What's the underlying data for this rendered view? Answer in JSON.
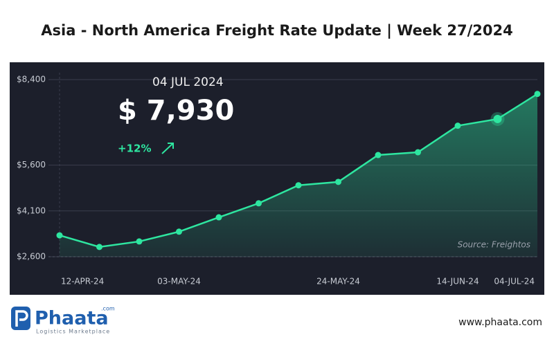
{
  "chart_data": {
    "type": "line",
    "title": "Asia - North America Freight Rate Update | Week 27/2024",
    "categories": [
      "12-APR-24",
      null,
      null,
      "03-MAY-24",
      null,
      null,
      null,
      "24-MAY-24",
      null,
      null,
      "14-JUN-24",
      null,
      "04-JUL-24"
    ],
    "series": [
      {
        "name": "Freight rate",
        "color": "#2ee6a0",
        "values": [
          3300,
          2920,
          3100,
          3420,
          3890,
          4350,
          4940,
          5050,
          5930,
          6020,
          6890,
          7110,
          7930
        ]
      }
    ],
    "ylim": [
      2600,
      8400
    ],
    "yticks": [
      {
        "value": 2600,
        "label": "$2,600"
      },
      {
        "value": 4100,
        "label": "$4,100"
      },
      {
        "value": 5600,
        "label": "$5,600"
      },
      {
        "value": 8400,
        "label": "$8,400"
      }
    ],
    "grid": true,
    "highlight": {
      "date": "04 JUL 2024",
      "price": "$ 7,930",
      "change": "+12%"
    },
    "source": "Source: Freightos",
    "brand": {
      "name": "Phaata",
      "domain_tag": ".com",
      "tagline": "Logistics Marketplace",
      "website": "www.phaata.com"
    }
  }
}
